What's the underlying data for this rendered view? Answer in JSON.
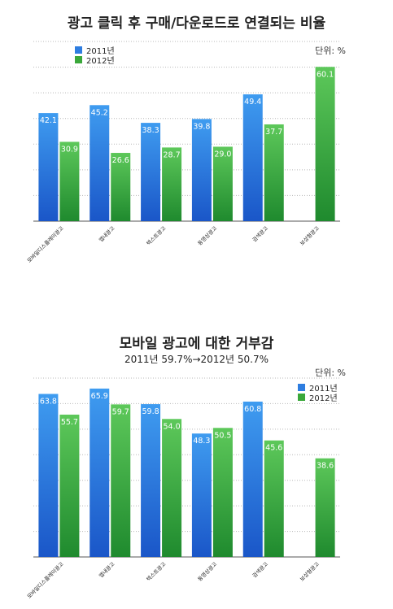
{
  "colors": {
    "series_2011": "#2e7de0",
    "series_2012": "#3aa83a",
    "grid": "#b8b8b8",
    "axis": "#555555"
  },
  "chart_data": [
    {
      "type": "bar",
      "title": "광고 클릭 후 구매/다운로드로 연결되는 비율",
      "unit": "단위: %",
      "categories": [
        "모바일디스플레이광고",
        "앱내광고",
        "텍스트광고",
        "동영상광고",
        "검색광고",
        "보상형광고"
      ],
      "series": [
        {
          "name": "2011년",
          "values": [
            42.1,
            45.2,
            38.3,
            39.8,
            49.4,
            null
          ]
        },
        {
          "name": "2012년",
          "values": [
            30.9,
            26.6,
            28.7,
            29.0,
            37.7,
            60.1
          ]
        }
      ],
      "ylim": [
        0,
        70
      ],
      "grid": true,
      "legend": "top-left"
    },
    {
      "type": "bar",
      "title": "모바일 광고에 대한 거부감",
      "subtitle": "2011년 59.7%→2012년 50.7%",
      "unit": "단위: %",
      "categories": [
        "모바일디스플레이광고",
        "앱내광고",
        "텍스트광고",
        "동영상광고",
        "검색광고",
        "보상형광고"
      ],
      "series": [
        {
          "name": "2011년",
          "values": [
            63.8,
            65.9,
            59.8,
            48.3,
            60.8,
            null
          ]
        },
        {
          "name": "2012년",
          "values": [
            55.7,
            59.7,
            54.0,
            50.5,
            45.6,
            38.6
          ]
        }
      ],
      "ylim": [
        0,
        70
      ],
      "grid": true,
      "legend": "top-right"
    }
  ]
}
